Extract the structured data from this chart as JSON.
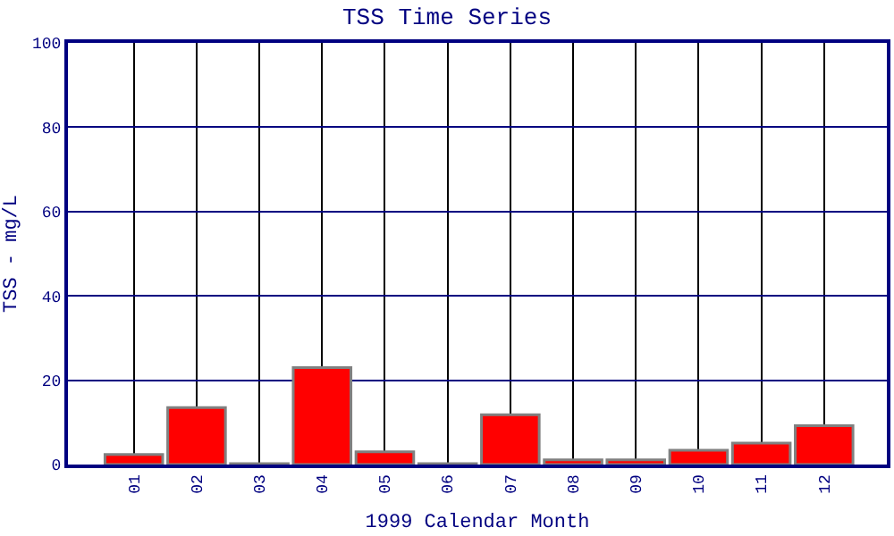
{
  "chart_data": {
    "type": "bar",
    "title": "TSS Time Series",
    "xlabel": "1999 Calendar Month",
    "ylabel": "TSS - mg/L",
    "categories": [
      "01",
      "02",
      "03",
      "04",
      "05",
      "06",
      "07",
      "08",
      "09",
      "10",
      "11",
      "12"
    ],
    "values": [
      2.4,
      13.5,
      0.2,
      23,
      3,
      0.2,
      11.8,
      1.1,
      1.1,
      3.4,
      5.1,
      9.2
    ],
    "color": "#ff0000",
    "ylim": [
      0,
      100
    ],
    "yticks": [
      0,
      20,
      40,
      60,
      80,
      100
    ],
    "grid": true
  }
}
